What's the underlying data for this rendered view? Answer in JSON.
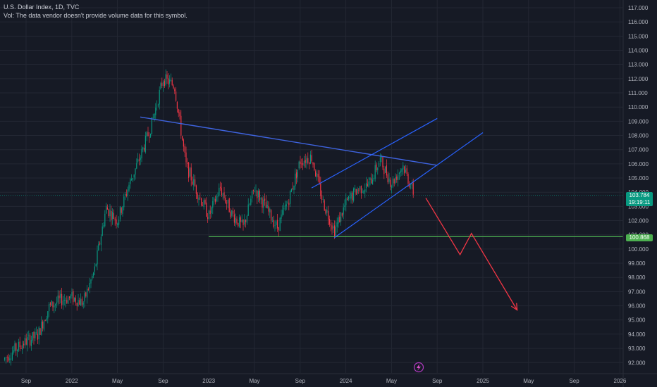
{
  "header": {
    "title": "U.S. Dollar Index, 1D, TVC",
    "volume_note": "Vol: The data vendor doesn't provide volume data for this symbol."
  },
  "chart_data": {
    "type": "candlestick",
    "title": "U.S. Dollar Index, 1D, TVC",
    "y_axis": {
      "ticks": [
        "92.000",
        "93.000",
        "94.000",
        "95.000",
        "96.000",
        "97.000",
        "98.000",
        "99.000",
        "100.000",
        "101.000",
        "102.000",
        "103.000",
        "104.000",
        "105.000",
        "106.000",
        "107.000",
        "108.000",
        "109.000",
        "110.000",
        "111.000",
        "112.000",
        "113.000",
        "114.000",
        "115.000",
        "116.000",
        "117.000"
      ],
      "range": [
        91.7,
        117.4
      ],
      "position": "right"
    },
    "x_axis": {
      "ticks": [
        {
          "label": "Sep",
          "date": "2021-09"
        },
        {
          "label": "2022",
          "date": "2022-01"
        },
        {
          "label": "May",
          "date": "2022-05"
        },
        {
          "label": "Sep",
          "date": "2022-09"
        },
        {
          "label": "2023",
          "date": "2023-01"
        },
        {
          "label": "May",
          "date": "2023-05"
        },
        {
          "label": "Sep",
          "date": "2023-09"
        },
        {
          "label": "2024",
          "date": "2024-01"
        },
        {
          "label": "May",
          "date": "2024-05"
        },
        {
          "label": "Sep",
          "date": "2024-09"
        },
        {
          "label": "2025",
          "date": "2025-01"
        },
        {
          "label": "May",
          "date": "2025-05"
        },
        {
          "label": "Sep",
          "date": "2025-09"
        },
        {
          "label": "2026",
          "date": "2026-01"
        }
      ]
    },
    "price_series": [
      [
        "2021-07",
        92.2
      ],
      [
        "2021-08",
        92.9
      ],
      [
        "2021-09",
        93.5
      ],
      [
        "2021-10",
        93.9
      ],
      [
        "2021-11",
        95.9
      ],
      [
        "2021-12",
        96.4
      ],
      [
        "2022-01",
        96.6
      ],
      [
        "2022-02",
        96.2
      ],
      [
        "2022-03",
        98.5
      ],
      [
        "2022-04",
        102.9
      ],
      [
        "2022-05",
        102.0
      ],
      [
        "2022-06",
        104.5
      ],
      [
        "2022-07",
        106.5
      ],
      [
        "2022-08",
        108.8
      ],
      [
        "2022-09",
        112.0
      ],
      [
        "2022-10",
        111.5
      ],
      [
        "2022-11",
        105.9
      ],
      [
        "2022-12",
        104.0
      ],
      [
        "2023-01",
        102.3
      ],
      [
        "2023-02",
        104.3
      ],
      [
        "2023-03",
        102.5
      ],
      [
        "2023-04",
        101.5
      ],
      [
        "2023-05",
        104.3
      ],
      [
        "2023-06",
        102.9
      ],
      [
        "2023-07",
        101.5
      ],
      [
        "2023-08",
        103.5
      ],
      [
        "2023-09",
        106.2
      ],
      [
        "2023-10",
        106.5
      ],
      [
        "2023-11",
        103.3
      ],
      [
        "2023-12",
        101.3
      ],
      [
        "2024-01",
        103.2
      ],
      [
        "2024-02",
        104.2
      ],
      [
        "2024-03",
        104.5
      ],
      [
        "2024-04",
        106.3
      ],
      [
        "2024-05",
        104.6
      ],
      [
        "2024-06",
        105.9
      ],
      [
        "2024-07",
        103.8
      ]
    ],
    "annotations": {
      "horizontal_support": {
        "value": 100.868,
        "from": "2023-01",
        "color": "#4caf50"
      },
      "descending_trendline": {
        "points": [
          [
            "2022-07",
            109.3
          ],
          [
            "2024-09",
            105.9
          ]
        ],
        "color": "#3f64e0"
      },
      "rising_channel_lower": {
        "points": [
          [
            "2023-12",
            100.8
          ],
          [
            "2025-01",
            108.2
          ]
        ],
        "color": "#2962ff"
      },
      "rising_channel_upper": {
        "points": [
          [
            "2023-10",
            104.3
          ],
          [
            "2024-09",
            109.2
          ]
        ],
        "color": "#2962ff"
      },
      "projection_arrow": {
        "points": [
          [
            "2024-08",
            103.6
          ],
          [
            "2024-11",
            99.6
          ],
          [
            "2024-12",
            101.1
          ],
          [
            "2025-04",
            95.7
          ]
        ],
        "color": "#f23645"
      }
    },
    "last_price": {
      "value": "103.784",
      "countdown": "19:19:11",
      "color": "#089981"
    },
    "support_label": {
      "value": "100.868",
      "color": "#4caf50"
    },
    "grid": true,
    "colors": {
      "up": "#089981",
      "down": "#f23645",
      "background": "#161a25",
      "grid": "#232733",
      "axis_text": "#b2b5be"
    }
  }
}
